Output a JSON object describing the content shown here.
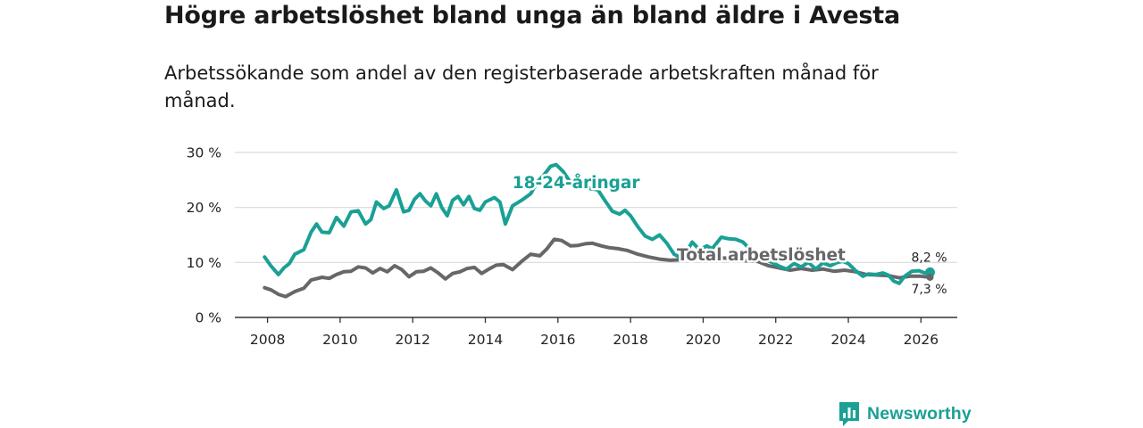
{
  "title": "Högre arbetslöshet bland unga än bland äldre i Avesta",
  "subtitle": "Arbetssökande som andel av den registerbaserade arbetskraften månad för månad.",
  "brand": {
    "name": "Newsworthy",
    "icon": "bar-chart-logo-icon",
    "color": "#1aa095"
  },
  "chart_data": {
    "type": "line",
    "title": "Högre arbetslöshet bland unga än bland äldre i Avesta",
    "subtitle": "Arbetssökande som andel av den registerbaserade arbetskraften månad för månad.",
    "xlabel": "",
    "ylabel": "",
    "xlim": [
      2007.1,
      2027.0
    ],
    "ylim": [
      0,
      30
    ],
    "grid": true,
    "x_ticks": [
      {
        "value": 2008,
        "label": "2008"
      },
      {
        "value": 2010,
        "label": "2010"
      },
      {
        "value": 2012,
        "label": "2012"
      },
      {
        "value": 2014,
        "label": "2014"
      },
      {
        "value": 2016,
        "label": "2016"
      },
      {
        "value": 2018,
        "label": "2018"
      },
      {
        "value": 2020,
        "label": "2020"
      },
      {
        "value": 2022,
        "label": "2022"
      },
      {
        "value": 2024,
        "label": "2024"
      },
      {
        "value": 2026,
        "label": "2026"
      }
    ],
    "y_ticks": [
      {
        "value": 0,
        "label": "0 %"
      },
      {
        "value": 10,
        "label": "10 %"
      },
      {
        "value": 20,
        "label": "20 %"
      },
      {
        "value": 30,
        "label": "30 %"
      }
    ],
    "series": [
      {
        "name": "18-24-åringar",
        "color": "#1aa095",
        "end_label": "8,2 %",
        "points": [
          [
            2007.92,
            11.0
          ],
          [
            2008.1,
            9.3
          ],
          [
            2008.3,
            7.8
          ],
          [
            2008.45,
            9.0
          ],
          [
            2008.6,
            9.8
          ],
          [
            2008.75,
            11.5
          ],
          [
            2009.0,
            12.3
          ],
          [
            2009.2,
            15.5
          ],
          [
            2009.35,
            17.0
          ],
          [
            2009.5,
            15.5
          ],
          [
            2009.7,
            15.4
          ],
          [
            2009.9,
            18.2
          ],
          [
            2010.1,
            16.6
          ],
          [
            2010.3,
            19.2
          ],
          [
            2010.5,
            19.4
          ],
          [
            2010.7,
            17.0
          ],
          [
            2010.85,
            17.8
          ],
          [
            2011.0,
            21.0
          ],
          [
            2011.2,
            19.8
          ],
          [
            2011.35,
            20.3
          ],
          [
            2011.55,
            23.2
          ],
          [
            2011.75,
            19.2
          ],
          [
            2011.9,
            19.5
          ],
          [
            2012.05,
            21.5
          ],
          [
            2012.2,
            22.5
          ],
          [
            2012.35,
            21.2
          ],
          [
            2012.5,
            20.3
          ],
          [
            2012.65,
            22.5
          ],
          [
            2012.8,
            20.0
          ],
          [
            2012.95,
            18.5
          ],
          [
            2013.1,
            21.3
          ],
          [
            2013.25,
            22.0
          ],
          [
            2013.4,
            20.5
          ],
          [
            2013.55,
            22.0
          ],
          [
            2013.7,
            19.8
          ],
          [
            2013.85,
            19.5
          ],
          [
            2014.0,
            21.0
          ],
          [
            2014.25,
            21.8
          ],
          [
            2014.4,
            21.0
          ],
          [
            2014.55,
            17.0
          ],
          [
            2014.75,
            20.3
          ],
          [
            2015.0,
            21.3
          ],
          [
            2015.25,
            22.5
          ],
          [
            2015.45,
            24.8
          ],
          [
            2015.6,
            25.8
          ],
          [
            2015.8,
            27.5
          ],
          [
            2015.95,
            27.8
          ],
          [
            2016.15,
            26.5
          ],
          [
            2016.3,
            25.0
          ],
          [
            2016.5,
            23.8
          ],
          [
            2016.7,
            24.0
          ],
          [
            2016.9,
            23.4
          ],
          [
            2017.1,
            23.2
          ],
          [
            2017.3,
            21.2
          ],
          [
            2017.5,
            19.3
          ],
          [
            2017.7,
            18.8
          ],
          [
            2017.85,
            19.5
          ],
          [
            2018.0,
            18.5
          ],
          [
            2018.2,
            16.5
          ],
          [
            2018.4,
            14.8
          ],
          [
            2018.6,
            14.2
          ],
          [
            2018.8,
            15.0
          ],
          [
            2019.0,
            13.5
          ],
          [
            2019.2,
            11.5
          ],
          [
            2019.4,
            10.8
          ],
          [
            2019.55,
            12.0
          ],
          [
            2019.7,
            13.7
          ],
          [
            2019.9,
            12.3
          ],
          [
            2020.1,
            13.0
          ],
          [
            2020.25,
            12.5
          ],
          [
            2020.5,
            14.6
          ],
          [
            2020.7,
            14.3
          ],
          [
            2020.9,
            14.2
          ],
          [
            2021.1,
            13.7
          ],
          [
            2021.3,
            12.3
          ],
          [
            2021.5,
            11.5
          ],
          [
            2021.7,
            10.5
          ],
          [
            2021.9,
            10.0
          ],
          [
            2022.1,
            9.3
          ],
          [
            2022.3,
            8.8
          ],
          [
            2022.5,
            9.8
          ],
          [
            2022.7,
            9.2
          ],
          [
            2022.9,
            10.0
          ],
          [
            2023.1,
            8.8
          ],
          [
            2023.3,
            9.9
          ],
          [
            2023.5,
            9.4
          ],
          [
            2023.7,
            10.0
          ],
          [
            2023.85,
            10.2
          ],
          [
            2024.0,
            9.8
          ],
          [
            2024.2,
            8.5
          ],
          [
            2024.4,
            7.5
          ],
          [
            2024.55,
            7.9
          ],
          [
            2024.75,
            7.8
          ],
          [
            2024.95,
            8.1
          ],
          [
            2025.1,
            7.7
          ],
          [
            2025.25,
            6.6
          ],
          [
            2025.4,
            6.2
          ],
          [
            2025.55,
            7.5
          ],
          [
            2025.75,
            8.4
          ],
          [
            2025.95,
            8.5
          ],
          [
            2026.1,
            8.1
          ],
          [
            2026.25,
            8.2
          ]
        ]
      },
      {
        "name": "Total arbetslöshet",
        "color": "#67676b",
        "end_label": "7,3 %",
        "points": [
          [
            2007.92,
            5.4
          ],
          [
            2008.1,
            5.0
          ],
          [
            2008.3,
            4.2
          ],
          [
            2008.5,
            3.8
          ],
          [
            2008.75,
            4.7
          ],
          [
            2009.0,
            5.3
          ],
          [
            2009.2,
            6.8
          ],
          [
            2009.5,
            7.3
          ],
          [
            2009.7,
            7.1
          ],
          [
            2009.9,
            7.8
          ],
          [
            2010.1,
            8.3
          ],
          [
            2010.3,
            8.4
          ],
          [
            2010.5,
            9.2
          ],
          [
            2010.7,
            9.0
          ],
          [
            2010.9,
            8.1
          ],
          [
            2011.1,
            8.9
          ],
          [
            2011.3,
            8.3
          ],
          [
            2011.5,
            9.4
          ],
          [
            2011.7,
            8.7
          ],
          [
            2011.9,
            7.4
          ],
          [
            2012.1,
            8.3
          ],
          [
            2012.3,
            8.4
          ],
          [
            2012.5,
            9.0
          ],
          [
            2012.7,
            8.1
          ],
          [
            2012.9,
            7.0
          ],
          [
            2013.1,
            8.0
          ],
          [
            2013.3,
            8.3
          ],
          [
            2013.5,
            8.9
          ],
          [
            2013.7,
            9.1
          ],
          [
            2013.9,
            8.0
          ],
          [
            2014.1,
            8.8
          ],
          [
            2014.3,
            9.5
          ],
          [
            2014.5,
            9.6
          ],
          [
            2014.75,
            8.7
          ],
          [
            2015.0,
            10.2
          ],
          [
            2015.25,
            11.5
          ],
          [
            2015.5,
            11.2
          ],
          [
            2015.7,
            12.5
          ],
          [
            2015.9,
            14.2
          ],
          [
            2016.1,
            14.0
          ],
          [
            2016.35,
            13.0
          ],
          [
            2016.55,
            13.1
          ],
          [
            2016.75,
            13.4
          ],
          [
            2016.95,
            13.5
          ],
          [
            2017.2,
            13.0
          ],
          [
            2017.4,
            12.7
          ],
          [
            2017.65,
            12.5
          ],
          [
            2017.9,
            12.2
          ],
          [
            2018.2,
            11.5
          ],
          [
            2018.5,
            11.0
          ],
          [
            2018.8,
            10.6
          ],
          [
            2019.1,
            10.4
          ],
          [
            2019.4,
            10.5
          ],
          [
            2019.7,
            10.8
          ],
          [
            2020.0,
            11.0
          ],
          [
            2020.3,
            10.8
          ],
          [
            2020.6,
            10.8
          ],
          [
            2020.9,
            10.5
          ],
          [
            2021.2,
            10.3
          ],
          [
            2021.5,
            10.2
          ],
          [
            2021.8,
            9.4
          ],
          [
            2022.1,
            9.0
          ],
          [
            2022.4,
            8.6
          ],
          [
            2022.7,
            8.9
          ],
          [
            2023.0,
            8.6
          ],
          [
            2023.3,
            8.8
          ],
          [
            2023.6,
            8.4
          ],
          [
            2023.9,
            8.6
          ],
          [
            2024.2,
            8.3
          ],
          [
            2024.5,
            7.8
          ],
          [
            2024.8,
            7.7
          ],
          [
            2025.1,
            7.6
          ],
          [
            2025.4,
            7.2
          ],
          [
            2025.7,
            7.5
          ],
          [
            2026.0,
            7.5
          ],
          [
            2026.25,
            7.3
          ]
        ]
      }
    ],
    "annotations": [
      {
        "text": "18-24-åringar",
        "series": "18-24-åringar",
        "x": 2016.5,
        "y": 23.5
      },
      {
        "text": "Total arbetslöshet",
        "series": "Total arbetslöshet",
        "x": 2021.6,
        "y": 10.4
      }
    ]
  }
}
